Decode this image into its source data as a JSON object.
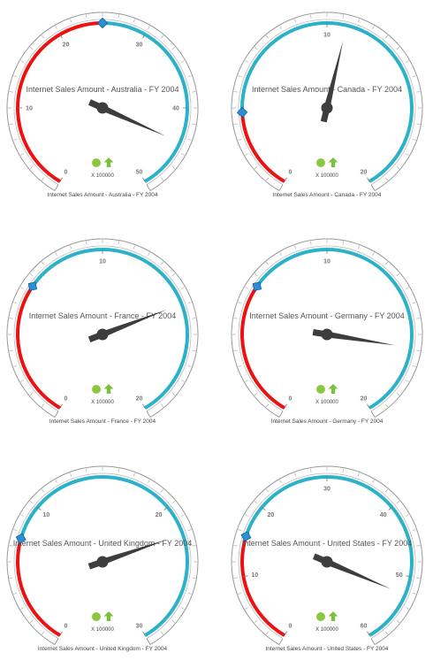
{
  "colors": {
    "red_range": "#ee1111",
    "blue_range": "#2bb2c8",
    "needle": "#3d3d3d",
    "marker": "#2a8fd6",
    "indicator_dot": "#8dc63f",
    "indicator_arrow": "#7bbf3a",
    "frame": "#999999"
  },
  "icons": {
    "status": "green-circle-icon",
    "trend": "green-up-arrow-icon"
  },
  "chart_data": [
    {
      "type": "gauge",
      "title": "Internet Sales Amount - Australia - FY 2004",
      "caption": "Internet Sales Amount - Australia - FY 2004",
      "scale_label": "X 100000",
      "min": 0,
      "max": 50,
      "ticks": [
        0,
        10,
        20,
        30,
        40,
        50
      ],
      "tick_labels": [
        "0",
        "10",
        "20",
        "30",
        "40",
        "50"
      ],
      "value": 44,
      "target": 25,
      "ranges": [
        {
          "from": 0,
          "to": 25,
          "color": "red"
        },
        {
          "from": 25,
          "to": 50,
          "color": "blue"
        }
      ]
    },
    {
      "type": "gauge",
      "title": "Internet Sales Amount - Canada - FY 2004",
      "caption": "Internet Sales Amount - Canada - FY 2004",
      "scale_label": "X 100000",
      "min": 0,
      "max": 20,
      "ticks": [
        0,
        10,
        20
      ],
      "tick_labels": [
        "0",
        "10",
        "20"
      ],
      "value": 10.9,
      "target": 3.8,
      "ranges": [
        {
          "from": 0,
          "to": 3.8,
          "color": "red"
        },
        {
          "from": 3.8,
          "to": 20,
          "color": "blue"
        }
      ]
    },
    {
      "type": "gauge",
      "title": "Internet Sales Amount - France - FY 2004",
      "caption": "Internet Sales Amount - France - FY 2004",
      "scale_label": "X 100000",
      "min": 0,
      "max": 20,
      "ticks": [
        0,
        10,
        20
      ],
      "tick_labels": [
        "0",
        "10",
        "20"
      ],
      "value": 14.6,
      "target": 6.3,
      "ranges": [
        {
          "from": 0,
          "to": 6.3,
          "color": "red"
        },
        {
          "from": 6.3,
          "to": 20,
          "color": "blue"
        }
      ]
    },
    {
      "type": "gauge",
      "title": "Internet Sales Amount - Germany - FY 2004",
      "caption": "Internet Sales Amount - Germany - FY 2004",
      "scale_label": "X 100000",
      "min": 0,
      "max": 20,
      "ticks": [
        0,
        10,
        20
      ],
      "tick_labels": [
        "0",
        "10",
        "20"
      ],
      "value": 16.6,
      "target": 6.3,
      "ranges": [
        {
          "from": 0,
          "to": 6.3,
          "color": "red"
        },
        {
          "from": 6.3,
          "to": 20,
          "color": "blue"
        }
      ]
    },
    {
      "type": "gauge",
      "title": "Internet Sales Amount - United Kingdom - FY 2004",
      "caption": "Internet Sales Amount - United Kingdom - FY 2004",
      "scale_label": "X 100000",
      "min": 0,
      "max": 30,
      "ticks": [
        0,
        10,
        20,
        30
      ],
      "tick_labels": [
        "0",
        "10",
        "20",
        "30"
      ],
      "value": 22.1,
      "target": 7.6,
      "ranges": [
        {
          "from": 0,
          "to": 7.6,
          "color": "red"
        },
        {
          "from": 7.6,
          "to": 30,
          "color": "blue"
        }
      ]
    },
    {
      "type": "gauge",
      "title": "Internet Sales Amount - United States - FY 2004",
      "caption": "Internet Sales Amount - United States - FY 2004",
      "scale_label": "X 100000",
      "min": 0,
      "max": 60,
      "ticks": [
        0,
        10,
        20,
        30,
        40,
        50,
        60
      ],
      "tick_labels": [
        "0",
        "10",
        "20",
        "30",
        "40",
        "50",
        "60"
      ],
      "value": 52.6,
      "target": 15.5,
      "ranges": [
        {
          "from": 0,
          "to": 15.5,
          "color": "red"
        },
        {
          "from": 15.5,
          "to": 60,
          "color": "blue"
        }
      ]
    }
  ]
}
